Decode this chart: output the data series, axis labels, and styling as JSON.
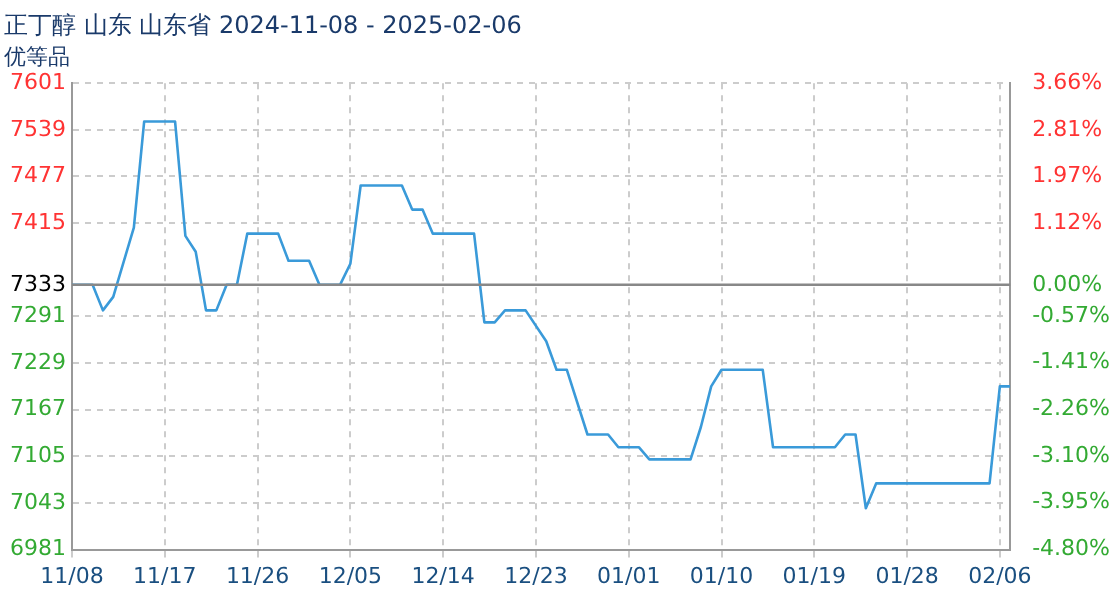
{
  "chart_data": {
    "type": "line",
    "title": "正丁醇 山东 山东省 2024-11-08 - 2025-02-06",
    "subtitle": "优等品",
    "x": [
      "2024-11-08",
      "2024-11-10",
      "2024-11-11",
      "2024-11-12",
      "2024-11-14",
      "2024-11-15",
      "2024-11-18",
      "2024-11-19",
      "2024-11-20",
      "2024-11-21",
      "2024-11-22",
      "2024-11-23",
      "2024-11-24",
      "2024-11-25",
      "2024-11-28",
      "2024-11-29",
      "2024-12-01",
      "2024-12-02",
      "2024-12-04",
      "2024-12-05",
      "2024-12-06",
      "2024-12-10",
      "2024-12-11",
      "2024-12-12",
      "2024-12-13",
      "2024-12-17",
      "2024-12-18",
      "2024-12-19",
      "2024-12-20",
      "2024-12-22",
      "2024-12-24",
      "2024-12-25",
      "2024-12-26",
      "2024-12-28",
      "2024-12-30",
      "2024-12-31",
      "2025-01-02",
      "2025-01-03",
      "2025-01-07",
      "2025-01-08",
      "2025-01-09",
      "2025-01-10",
      "2025-01-14",
      "2025-01-15",
      "2025-01-21",
      "2025-01-22",
      "2025-01-23",
      "2025-01-24",
      "2025-01-25",
      "2025-02-05",
      "2025-02-06",
      "2025-02-07"
    ],
    "series": [
      {
        "color": "#3a9ad9",
        "values": [
          7333,
          7333,
          7299,
          7317,
          7409,
          7550,
          7550,
          7398,
          7377,
          7299,
          7299,
          7333,
          7333,
          7401,
          7401,
          7365,
          7365,
          7333,
          7333,
          7361,
          7465,
          7465,
          7433,
          7433,
          7401,
          7401,
          7283,
          7283,
          7299,
          7299,
          7258,
          7220,
          7220,
          7134,
          7134,
          7117,
          7117,
          7101,
          7101,
          7144,
          7198,
          7220,
          7220,
          7117,
          7117,
          7134,
          7134,
          7036,
          7069,
          7069,
          7198,
          7198
        ]
      }
    ],
    "xlim": [
      "2024-11-08",
      "2025-02-07"
    ],
    "xticks": [
      {
        "value": "2024-11-08",
        "label": "11/08"
      },
      {
        "value": "2024-11-17",
        "label": "11/17"
      },
      {
        "value": "2024-11-26",
        "label": "11/26"
      },
      {
        "value": "2024-12-05",
        "label": "12/05"
      },
      {
        "value": "2024-12-14",
        "label": "12/14"
      },
      {
        "value": "2024-12-23",
        "label": "12/23"
      },
      {
        "value": "2025-01-01",
        "label": "01/01"
      },
      {
        "value": "2025-01-10",
        "label": "01/10"
      },
      {
        "value": "2025-01-19",
        "label": "01/19"
      },
      {
        "value": "2025-01-28",
        "label": "01/28"
      },
      {
        "value": "2025-02-06",
        "label": "02/06"
      }
    ],
    "ylim": [
      6981,
      7601
    ],
    "yticks": [
      7601,
      7539,
      7477,
      7415,
      7333,
      7291,
      7229,
      7167,
      7105,
      7043,
      6981
    ],
    "y2lim": [
      -4.8,
      3.66
    ],
    "y2ticks": [
      {
        "value": 3.66,
        "label": "3.66%"
      },
      {
        "value": 2.81,
        "label": "2.81%"
      },
      {
        "value": 1.97,
        "label": "1.97%"
      },
      {
        "value": 1.12,
        "label": "1.12%"
      },
      {
        "value": 0,
        "label": "0.00%"
      },
      {
        "value": -0.57,
        "label": "-0.57%"
      },
      {
        "value": -1.41,
        "label": "-1.41%"
      },
      {
        "value": -2.26,
        "label": "-2.26%"
      },
      {
        "value": -3.1,
        "label": "-3.10%"
      },
      {
        "value": -3.95,
        "label": "-3.95%"
      },
      {
        "value": -4.8,
        "label": "-4.80%"
      }
    ],
    "ref_lines": [
      {
        "axis": "y",
        "value": 7333,
        "color": "#888888"
      }
    ],
    "grid": true,
    "legend": false,
    "marker": "none",
    "line_style": "solid"
  }
}
